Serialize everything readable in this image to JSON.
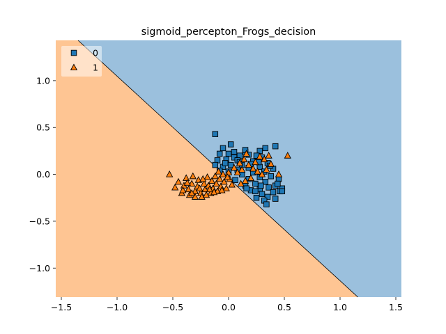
{
  "chart_data": {
    "type": "scatter",
    "title": "sigmoid_percepton_Frogs_decision",
    "xlabel": "",
    "ylabel": "",
    "xlim": [
      -1.55,
      1.55
    ],
    "ylim": [
      -1.31,
      1.43
    ],
    "x_ticks": [
      "−1.5",
      "−1.0",
      "−0.5",
      "0.0",
      "0.5",
      "1.0",
      "1.5"
    ],
    "y_ticks": [
      "−1.0",
      "−0.5",
      "0.0",
      "0.5",
      "1.0"
    ],
    "grid": false,
    "legend": {
      "placement": "top-left",
      "entries": [
        "0",
        "1"
      ]
    },
    "decision_boundary": {
      "points": [
        [
          -1.35,
          1.43
        ],
        [
          1.16,
          -1.31
        ]
      ]
    },
    "regions": [
      {
        "class": "0",
        "side": "upper-right",
        "color": "#9bc0dd"
      },
      {
        "class": "1",
        "side": "lower-left",
        "color": "#fec593"
      }
    ],
    "series": [
      {
        "name": "0",
        "marker": "square",
        "color": "#1f77b4",
        "points": [
          [
            -0.12,
            0.43
          ],
          [
            0.02,
            0.32
          ],
          [
            0.42,
            0.3
          ],
          [
            0.33,
            0.28
          ],
          [
            -0.05,
            0.28
          ],
          [
            0.28,
            0.25
          ],
          [
            0.15,
            0.24
          ],
          [
            0.1,
            0.2
          ],
          [
            -0.08,
            0.22
          ],
          [
            0.0,
            0.22
          ],
          [
            0.18,
            0.21
          ],
          [
            0.25,
            0.2
          ],
          [
            0.3,
            0.18
          ],
          [
            0.05,
            0.18
          ],
          [
            -0.02,
            0.16
          ],
          [
            0.08,
            0.15
          ],
          [
            0.22,
            0.14
          ],
          [
            0.35,
            0.12
          ],
          [
            -0.1,
            0.15
          ],
          [
            0.12,
            0.1
          ],
          [
            0.02,
            0.1
          ],
          [
            -0.05,
            0.08
          ],
          [
            0.28,
            0.08
          ],
          [
            0.18,
            0.07
          ],
          [
            0.4,
            0.06
          ],
          [
            0.08,
            0.05
          ],
          [
            -0.12,
            0.1
          ],
          [
            0.32,
            0.03
          ],
          [
            0.22,
            0.02
          ],
          [
            0.0,
            0.03
          ],
          [
            0.12,
            0.0
          ],
          [
            0.38,
            -0.02
          ],
          [
            0.28,
            -0.03
          ],
          [
            0.18,
            -0.05
          ],
          [
            0.45,
            -0.05
          ],
          [
            0.06,
            -0.06
          ],
          [
            0.33,
            -0.08
          ],
          [
            0.24,
            -0.1
          ],
          [
            0.42,
            -0.12
          ],
          [
            0.15,
            -0.12
          ],
          [
            0.36,
            -0.14
          ],
          [
            0.48,
            -0.15
          ],
          [
            0.28,
            -0.16
          ],
          [
            0.2,
            -0.17
          ],
          [
            0.4,
            -0.19
          ],
          [
            0.3,
            -0.21
          ],
          [
            0.46,
            -0.18
          ],
          [
            0.35,
            -0.24
          ],
          [
            0.25,
            -0.25
          ],
          [
            0.42,
            -0.26
          ],
          [
            0.32,
            -0.28
          ],
          [
            0.34,
            -0.32
          ],
          [
            0.15,
            0.26
          ],
          [
            -0.03,
            0.12
          ],
          [
            0.1,
            0.13
          ],
          [
            0.2,
            0.11
          ],
          [
            0.27,
            0.13
          ],
          [
            0.37,
            0.09
          ],
          [
            0.05,
            0.24
          ],
          [
            -0.08,
            0.04
          ],
          [
            0.24,
            -0.18
          ],
          [
            0.44,
            -0.1
          ],
          [
            0.16,
            -0.15
          ],
          [
            0.29,
            -0.12
          ],
          [
            0.48,
            -0.18
          ]
        ]
      },
      {
        "name": "1",
        "marker": "triangle",
        "color": "#ff7f0e",
        "points": [
          [
            -0.53,
            0.0
          ],
          [
            -0.48,
            -0.14
          ],
          [
            -0.45,
            -0.08
          ],
          [
            -0.42,
            -0.2
          ],
          [
            -0.4,
            -0.12
          ],
          [
            -0.38,
            -0.04
          ],
          [
            -0.36,
            -0.16
          ],
          [
            -0.35,
            -0.22
          ],
          [
            -0.33,
            -0.1
          ],
          [
            -0.32,
            -0.02
          ],
          [
            -0.3,
            -0.18
          ],
          [
            -0.28,
            -0.13
          ],
          [
            -0.27,
            -0.06
          ],
          [
            -0.25,
            -0.2
          ],
          [
            -0.24,
            -0.24
          ],
          [
            -0.22,
            -0.1
          ],
          [
            -0.21,
            -0.16
          ],
          [
            -0.19,
            -0.03
          ],
          [
            -0.18,
            -0.12
          ],
          [
            -0.16,
            -0.2
          ],
          [
            -0.15,
            -0.07
          ],
          [
            -0.14,
            -0.15
          ],
          [
            -0.12,
            -0.02
          ],
          [
            -0.11,
            -0.1
          ],
          [
            -0.1,
            -0.18
          ],
          [
            -0.08,
            -0.05
          ],
          [
            -0.07,
            -0.13
          ],
          [
            -0.05,
            0.0
          ],
          [
            -0.04,
            -0.08
          ],
          [
            -0.02,
            -0.15
          ],
          [
            0.0,
            0.02
          ],
          [
            0.01,
            -0.05
          ],
          [
            0.03,
            -0.11
          ],
          [
            -0.09,
            0.03
          ],
          [
            -0.2,
            -0.22
          ],
          [
            -0.3,
            -0.24
          ],
          [
            -0.41,
            -0.17
          ],
          [
            -0.37,
            -0.09
          ],
          [
            -0.26,
            -0.15
          ],
          [
            -0.17,
            -0.16
          ],
          [
            -0.13,
            -0.19
          ],
          [
            -0.23,
            -0.05
          ],
          [
            -0.33,
            -0.2
          ],
          [
            -0.06,
            -0.17
          ],
          [
            0.05,
            0.07
          ],
          [
            0.1,
            0.12
          ],
          [
            0.14,
            0.16
          ],
          [
            0.18,
            0.1
          ],
          [
            0.22,
            0.06
          ],
          [
            0.26,
            0.03
          ],
          [
            0.3,
            0.0
          ],
          [
            0.34,
            0.05
          ],
          [
            0.38,
            0.11
          ],
          [
            0.53,
            0.2
          ],
          [
            0.45,
            0.0
          ],
          [
            0.2,
            -0.04
          ],
          [
            0.15,
            -0.07
          ],
          [
            0.12,
            0.05
          ],
          [
            0.08,
            0.02
          ],
          [
            0.24,
            0.13
          ],
          [
            0.32,
            0.16
          ],
          [
            0.28,
            0.19
          ],
          [
            0.16,
            0.22
          ],
          [
            0.36,
            0.2
          ],
          [
            0.11,
            -0.1
          ],
          [
            -0.01,
            -0.03
          ]
        ]
      }
    ]
  }
}
